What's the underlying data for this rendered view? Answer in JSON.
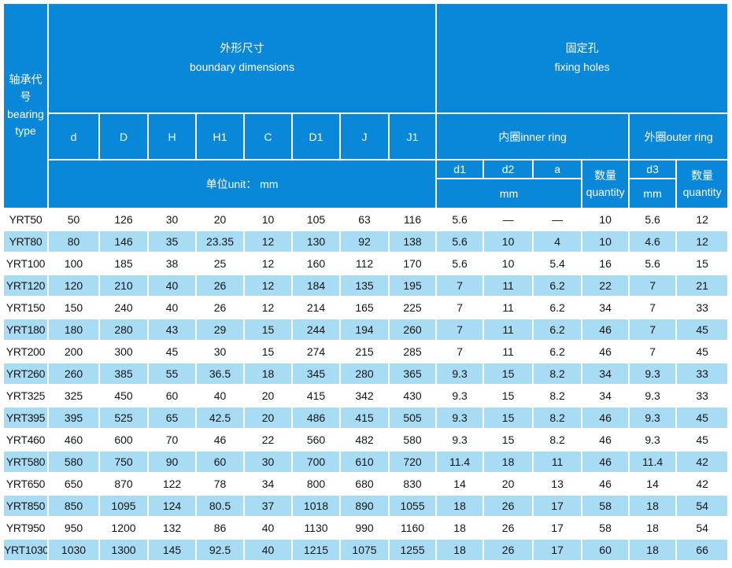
{
  "colors": {
    "header_blue": "#0987d8",
    "row_alt_blue": "#a8dcf4",
    "row_white": "#ffffff",
    "header_text": "#ffffff",
    "data_text": "#141414"
  },
  "header": {
    "bearing_type": "轴承代号\nbearing\ntype",
    "boundary_group": "外形尺寸\nboundary dimensions",
    "fixing_group": "固定孔\nfixing holes",
    "dim_cols": [
      "d",
      "D",
      "H",
      "H1",
      "C",
      "D1",
      "J",
      "J1"
    ],
    "unit_row": "单位unit：  mm",
    "inner_ring": "内圈inner  ring",
    "outer_ring": "外圈outer  ring",
    "inner_cols": [
      "d1",
      "d2",
      "a"
    ],
    "quantity": "数量\nquantity",
    "d3": "d3",
    "mm": "mm"
  },
  "rows": [
    [
      "YRT50",
      "50",
      "126",
      "30",
      "20",
      "10",
      "105",
      "63",
      "116",
      "5.6",
      "—",
      "—",
      "10",
      "5.6",
      "12"
    ],
    [
      "YRT80",
      "80",
      "146",
      "35",
      "23.35",
      "12",
      "130",
      "92",
      "138",
      "5.6",
      "10",
      "4",
      "10",
      "4.6",
      "12"
    ],
    [
      "YRT100",
      "100",
      "185",
      "38",
      "25",
      "12",
      "160",
      "112",
      "170",
      "5.6",
      "10",
      "5.4",
      "16",
      "5.6",
      "15"
    ],
    [
      "YRT120",
      "120",
      "210",
      "40",
      "26",
      "12",
      "184",
      "135",
      "195",
      "7",
      "11",
      "6.2",
      "22",
      "7",
      "21"
    ],
    [
      "YRT150",
      "150",
      "240",
      "40",
      "26",
      "12",
      "214",
      "165",
      "225",
      "7",
      "11",
      "6.2",
      "34",
      "7",
      "33"
    ],
    [
      "YRT180",
      "180",
      "280",
      "43",
      "29",
      "15",
      "244",
      "194",
      "260",
      "7",
      "11",
      "6.2",
      "46",
      "7",
      "45"
    ],
    [
      "YRT200",
      "200",
      "300",
      "45",
      "30",
      "15",
      "274",
      "215",
      "285",
      "7",
      "11",
      "6.2",
      "46",
      "7",
      "45"
    ],
    [
      "YRT260",
      "260",
      "385",
      "55",
      "36.5",
      "18",
      "345",
      "280",
      "365",
      "9.3",
      "15",
      "8.2",
      "34",
      "9.3",
      "33"
    ],
    [
      "YRT325",
      "325",
      "450",
      "60",
      "40",
      "20",
      "415",
      "342",
      "430",
      "9.3",
      "15",
      "8.2",
      "34",
      "9.3",
      "33"
    ],
    [
      "YRT395",
      "395",
      "525",
      "65",
      "42.5",
      "20",
      "486",
      "415",
      "505",
      "9.3",
      "15",
      "8.2",
      "46",
      "9.3",
      "45"
    ],
    [
      "YRT460",
      "460",
      "600",
      "70",
      "46",
      "22",
      "560",
      "482",
      "580",
      "9.3",
      "15",
      "8.2",
      "46",
      "9.3",
      "45"
    ],
    [
      "YRT580",
      "580",
      "750",
      "90",
      "60",
      "30",
      "700",
      "610",
      "720",
      "11.4",
      "18",
      "11",
      "46",
      "11.4",
      "42"
    ],
    [
      "YRT650",
      "650",
      "870",
      "122",
      "78",
      "34",
      "800",
      "680",
      "830",
      "14",
      "20",
      "13",
      "46",
      "14",
      "42"
    ],
    [
      "YRT850",
      "850",
      "1095",
      "124",
      "80.5",
      "37",
      "1018",
      "890",
      "1055",
      "18",
      "26",
      "17",
      "58",
      "18",
      "54"
    ],
    [
      "YRT950",
      "950",
      "1200",
      "132",
      "86",
      "40",
      "1130",
      "990",
      "1160",
      "18",
      "26",
      "17",
      "58",
      "18",
      "54"
    ],
    [
      "YRT1030",
      "1030",
      "1300",
      "145",
      "92.5",
      "40",
      "1215",
      "1075",
      "1255",
      "18",
      "26",
      "17",
      "60",
      "18",
      "66"
    ]
  ]
}
